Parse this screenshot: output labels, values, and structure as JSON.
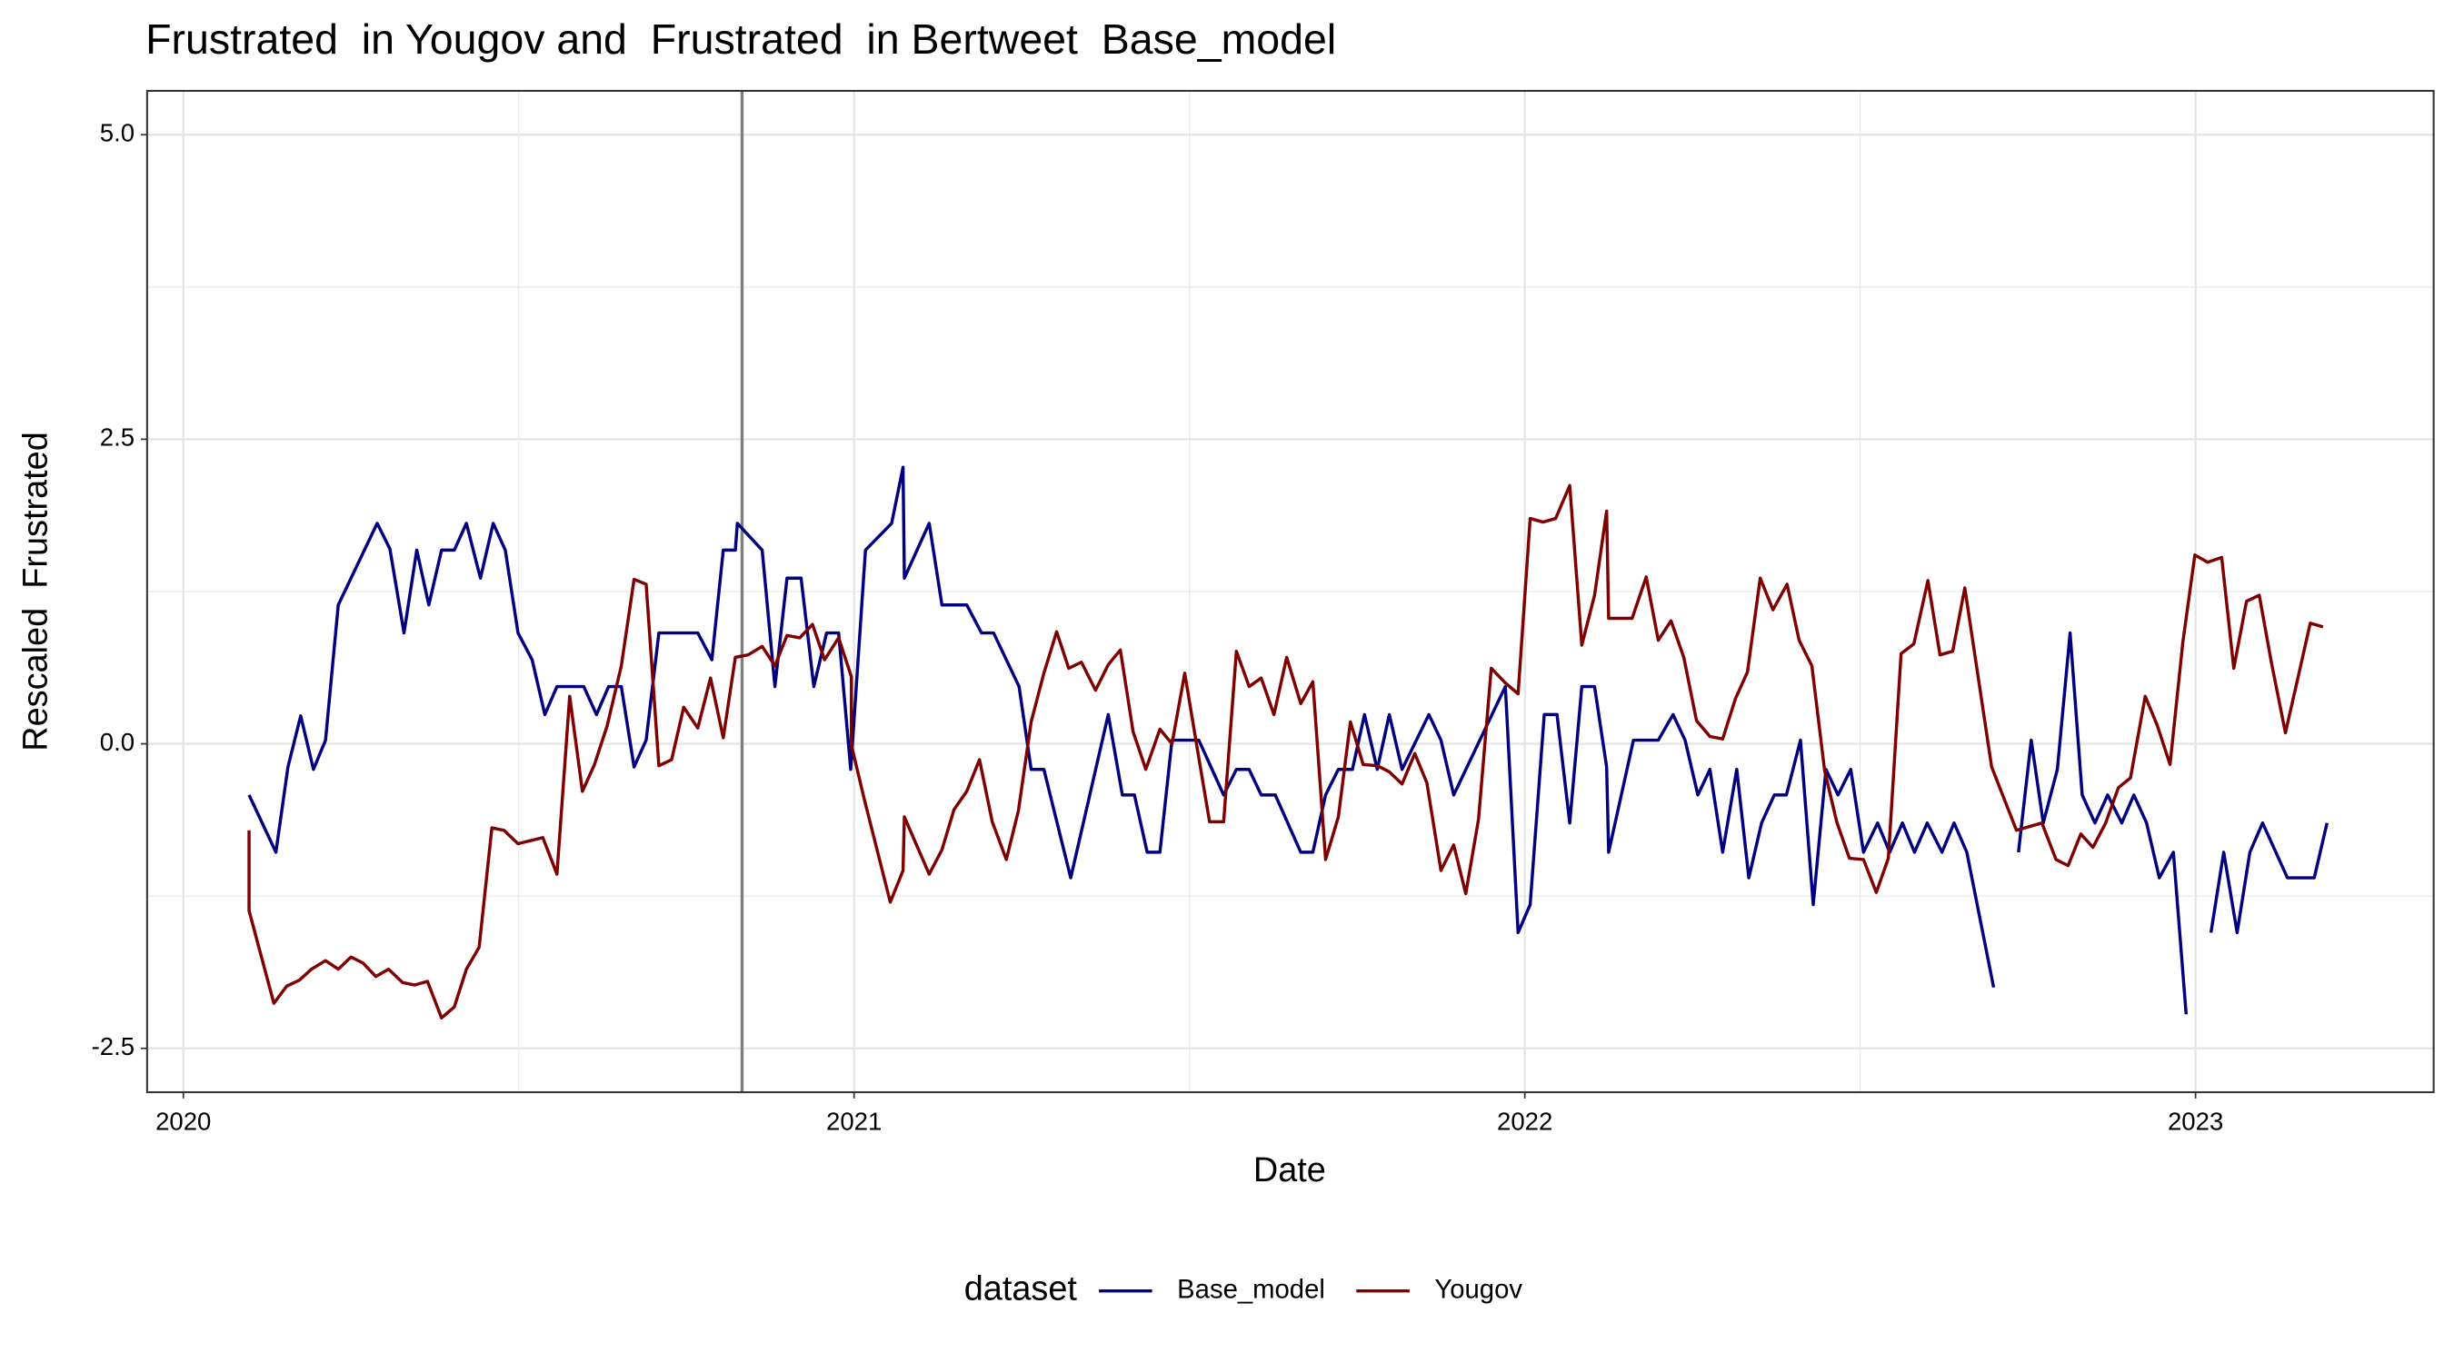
{
  "chart_data": {
    "type": "line",
    "title": "Frustrated  in Yougov and  Frustrated  in Bertweet  Base_model",
    "x_label": "Date",
    "y_label": "Rescaled  Frustrated",
    "legend_title": "dataset",
    "legend_position": "bottom",
    "grid": true,
    "xlim": [
      2019.946,
      2023.355
    ],
    "xticks": [
      2020,
      2021,
      2022,
      2023
    ],
    "ylim": [
      -2.86,
      5.36
    ],
    "yticks": [
      {
        "value": 5,
        "label": "5.0"
      },
      2.5,
      {
        "value": 0,
        "label": "0.0"
      },
      -2.5
    ],
    "vline": 2020.833,
    "series": [
      {
        "name": "Base_model",
        "color": "#000080",
        "x": [
          2020.098,
          2020.138,
          2020.156,
          2020.175,
          2020.194,
          2020.212,
          2020.231,
          2020.289,
          2020.308,
          2020.329,
          2020.348,
          2020.366,
          2020.385,
          2020.404,
          2020.422,
          2020.443,
          2020.462,
          2020.48,
          2020.499,
          2020.52,
          2020.539,
          2020.557,
          2020.597,
          2020.616,
          2020.634,
          2020.653,
          2020.672,
          2020.69,
          2020.709,
          2020.767,
          2020.788,
          2020.805,
          2020.823,
          2020.826,
          2020.863,
          2020.882,
          2020.9,
          2020.921,
          2020.94,
          2020.959,
          2020.977,
          2020.995,
          2021.017,
          2021.056,
          2021.073,
          2021.075,
          2021.112,
          2021.131,
          2021.168,
          2021.19,
          2021.208,
          2021.246,
          2021.264,
          2021.283,
          2021.323,
          2021.379,
          2021.4,
          2021.418,
          2021.437,
          2021.456,
          2021.474,
          2021.514,
          2021.551,
          2021.57,
          2021.589,
          2021.607,
          2021.628,
          2021.666,
          2021.684,
          2021.703,
          2021.722,
          2021.743,
          2021.761,
          2021.78,
          2021.798,
          2021.817,
          2021.857,
          2021.875,
          2021.894,
          2021.971,
          2021.99,
          2022.008,
          2022.029,
          2022.048,
          2022.067,
          2022.085,
          2022.104,
          2022.122,
          2022.125,
          2022.162,
          2022.199,
          2022.221,
          2022.239,
          2022.258,
          2022.276,
          2022.295,
          2022.316,
          2022.334,
          2022.353,
          2022.372,
          2022.39,
          2022.411,
          2022.43,
          2022.449,
          2022.467,
          2022.486,
          2022.505,
          2022.526,
          2022.544,
          2022.563,
          2022.581,
          2022.6,
          2022.622,
          2022.64,
          2022.659,
          2022.699,
          null,
          2022.736,
          2022.755,
          2022.773,
          2022.794,
          2022.813,
          2022.831,
          2022.85,
          2022.869,
          2022.89,
          2022.908,
          2022.927,
          2022.946,
          2022.967,
          2022.986,
          null,
          2023.023,
          2023.042,
          2023.062,
          2023.081,
          2023.1,
          2023.137,
          2023.177,
          2023.196
        ],
        "values": [
          -0.42,
          -0.89,
          -0.19,
          0.23,
          -0.21,
          0.03,
          1.14,
          1.81,
          1.6,
          0.91,
          1.59,
          1.14,
          1.59,
          1.59,
          1.81,
          1.36,
          1.81,
          1.59,
          0.91,
          0.69,
          0.24,
          0.47,
          0.47,
          0.24,
          0.47,
          0.47,
          -0.19,
          0.03,
          0.91,
          0.91,
          0.69,
          1.59,
          1.59,
          1.81,
          1.59,
          0.47,
          1.36,
          1.36,
          0.47,
          0.91,
          0.91,
          -0.21,
          1.59,
          1.81,
          2.27,
          1.36,
          1.81,
          1.14,
          1.14,
          0.91,
          0.91,
          0.47,
          -0.21,
          -0.21,
          -1.1,
          0.24,
          -0.42,
          -0.42,
          -0.89,
          -0.89,
          0.03,
          0.03,
          -0.42,
          -0.21,
          -0.21,
          -0.42,
          -0.42,
          -0.89,
          -0.89,
          -0.42,
          -0.21,
          -0.21,
          0.24,
          -0.21,
          0.24,
          -0.21,
          0.24,
          0.03,
          -0.42,
          0.47,
          -1.55,
          -1.32,
          0.24,
          0.24,
          -0.65,
          0.47,
          0.47,
          -0.19,
          -0.89,
          0.03,
          0.03,
          0.24,
          0.03,
          -0.42,
          -0.21,
          -0.89,
          -0.21,
          -1.1,
          -0.65,
          -0.42,
          -0.42,
          0.03,
          -1.32,
          -0.21,
          -0.42,
          -0.21,
          -0.89,
          -0.65,
          -0.89,
          -0.65,
          -0.89,
          -0.65,
          -0.89,
          -0.65,
          -0.89,
          -2.0,
          null,
          -0.89,
          0.03,
          -0.65,
          -0.21,
          0.91,
          -0.42,
          -0.65,
          -0.42,
          -0.65,
          -0.42,
          -0.65,
          -1.1,
          -0.89,
          -2.22,
          null,
          -1.55,
          -0.89,
          -1.55,
          -0.89,
          -0.65,
          -1.1,
          -1.1,
          -0.65
        ]
      },
      {
        "name": "Yougov",
        "color": "#800000",
        "x": [
          2020.098,
          2020.098,
          2020.135,
          2020.154,
          2020.173,
          2020.191,
          2020.212,
          2020.231,
          2020.25,
          2020.268,
          2020.287,
          2020.306,
          2020.327,
          2020.345,
          2020.364,
          2020.385,
          2020.404,
          2020.422,
          2020.441,
          2020.46,
          2020.478,
          2020.499,
          2020.536,
          2020.557,
          2020.576,
          2020.595,
          2020.613,
          2020.632,
          2020.653,
          2020.672,
          2020.69,
          2020.709,
          2020.728,
          2020.746,
          2020.767,
          2020.786,
          2020.805,
          2020.823,
          2020.842,
          2020.863,
          2020.882,
          2020.9,
          2020.919,
          2020.938,
          2020.956,
          2020.977,
          2020.996,
          2020.996,
          2021.015,
          2021.054,
          2021.073,
          2021.075,
          2021.112,
          2021.131,
          2021.149,
          2021.168,
          2021.187,
          2021.206,
          2021.227,
          2021.245,
          2021.264,
          2021.283,
          2021.302,
          2021.32,
          2021.339,
          2021.36,
          2021.379,
          2021.397,
          2021.416,
          2021.435,
          2021.456,
          2021.474,
          2021.493,
          2021.512,
          2021.53,
          2021.551,
          2021.57,
          2021.589,
          2021.607,
          2021.626,
          2021.645,
          2021.666,
          2021.684,
          2021.703,
          2021.722,
          2021.74,
          2021.759,
          2021.78,
          2021.798,
          2021.817,
          2021.836,
          2021.854,
          2021.875,
          2021.894,
          2021.912,
          2021.931,
          2021.95,
          2021.971,
          2021.99,
          2022.008,
          2022.027,
          2022.046,
          2022.067,
          2022.085,
          2022.104,
          2022.122,
          2022.125,
          2022.16,
          2022.181,
          2022.199,
          2022.218,
          2022.237,
          2022.256,
          2022.276,
          2022.295,
          2022.314,
          2022.332,
          2022.351,
          2022.37,
          2022.391,
          2022.409,
          2022.428,
          2022.447,
          2022.465,
          2022.484,
          2022.505,
          2022.524,
          2022.542,
          2022.561,
          2022.58,
          2022.601,
          2022.619,
          2022.638,
          2022.656,
          2022.696,
          2022.733,
          2022.771,
          2022.792,
          2022.81,
          2022.829,
          2022.847,
          2022.866,
          2022.885,
          2022.903,
          2022.925,
          2022.943,
          2022.962,
          2022.981,
          2022.999,
          2023.018,
          2023.039,
          2023.057,
          2023.076,
          2023.095,
          2023.113,
          2023.134,
          2023.153,
          2023.171,
          2023.19
        ],
        "values": [
          -0.71,
          -1.37,
          -2.13,
          -1.99,
          -1.94,
          -1.85,
          -1.78,
          -1.85,
          -1.75,
          -1.8,
          -1.91,
          -1.85,
          -1.96,
          -1.98,
          -1.95,
          -2.25,
          -2.16,
          -1.85,
          -1.67,
          -0.69,
          -0.71,
          -0.82,
          -0.77,
          -1.07,
          0.39,
          -0.39,
          -0.17,
          0.15,
          0.64,
          1.35,
          1.31,
          -0.18,
          -0.13,
          0.3,
          0.13,
          0.54,
          0.05,
          0.71,
          0.73,
          0.8,
          0.64,
          0.89,
          0.87,
          0.98,
          0.69,
          0.87,
          0.55,
          -0.01,
          -0.45,
          -1.3,
          -1.04,
          -0.6,
          -1.07,
          -0.87,
          -0.54,
          -0.39,
          -0.13,
          -0.64,
          -0.95,
          -0.55,
          0.18,
          0.58,
          0.92,
          0.62,
          0.67,
          0.44,
          0.65,
          0.77,
          0.1,
          -0.21,
          0.12,
          0,
          0.58,
          -0.05,
          -0.64,
          -0.64,
          0.76,
          0.47,
          0.54,
          0.24,
          0.71,
          0.33,
          0.51,
          -0.95,
          -0.6,
          0.18,
          -0.17,
          -0.18,
          -0.23,
          -0.33,
          -0.08,
          -0.32,
          -1.04,
          -0.83,
          -1.23,
          -0.62,
          0.62,
          0.5,
          0.41,
          1.85,
          1.82,
          1.85,
          2.12,
          0.81,
          1.22,
          1.91,
          1.03,
          1.03,
          1.37,
          0.85,
          1.01,
          0.71,
          0.19,
          0.06,
          0.04,
          0.37,
          0.59,
          1.36,
          1.1,
          1.31,
          0.85,
          0.64,
          -0.22,
          -0.64,
          -0.94,
          -0.95,
          -1.22,
          -0.94,
          0.74,
          0.82,
          1.34,
          0.73,
          0.76,
          1.28,
          -0.19,
          -0.71,
          -0.65,
          -0.95,
          -1.0,
          -0.74,
          -0.85,
          -0.65,
          -0.36,
          -0.28,
          0.39,
          0.15,
          -0.17,
          0.83,
          1.55,
          1.49,
          1.53,
          0.62,
          1.17,
          1.22,
          0.67,
          0.09,
          0.55,
          0.99,
          0.96
        ]
      }
    ]
  }
}
